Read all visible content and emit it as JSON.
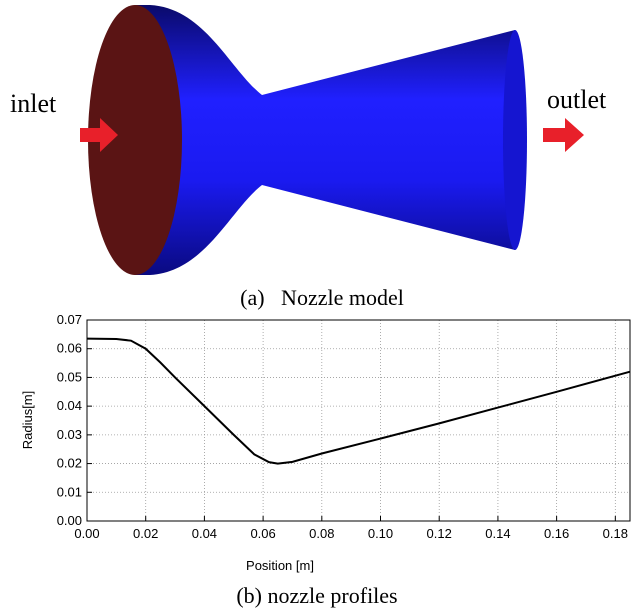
{
  "model": {
    "inlet_label": "inlet",
    "outlet_label": "outlet",
    "caption": "(a)   Nozzle model"
  },
  "chart_data": {
    "type": "line",
    "caption": "(b) nozzle profiles",
    "xlabel": "Position [m]",
    "ylabel": "Radius[m]",
    "x": [
      0,
      0.01,
      0.015,
      0.02,
      0.025,
      0.03,
      0.04,
      0.05,
      0.057,
      0.062,
      0.065,
      0.07,
      0.08,
      0.1,
      0.12,
      0.14,
      0.16,
      0.185
    ],
    "values": [
      0.0635,
      0.0634,
      0.0628,
      0.06,
      0.0552,
      0.05,
      0.04,
      0.03,
      0.0232,
      0.0205,
      0.02,
      0.0206,
      0.0235,
      0.0287,
      0.034,
      0.0395,
      0.045,
      0.052
    ],
    "color": "#000000",
    "xlim": [
      0,
      0.185
    ],
    "ylim": [
      0,
      0.07
    ],
    "xticks": [
      {
        "value": 0,
        "label": "0.00"
      },
      0.02,
      0.04,
      0.06,
      0.08,
      {
        "value": 0.1,
        "label": "0.10"
      },
      0.12,
      0.14,
      0.16,
      0.18
    ],
    "yticks": [
      {
        "value": 0,
        "label": "0.00"
      },
      0.01,
      0.02,
      0.03,
      0.04,
      0.05,
      0.06,
      0.07
    ],
    "grid": true
  }
}
